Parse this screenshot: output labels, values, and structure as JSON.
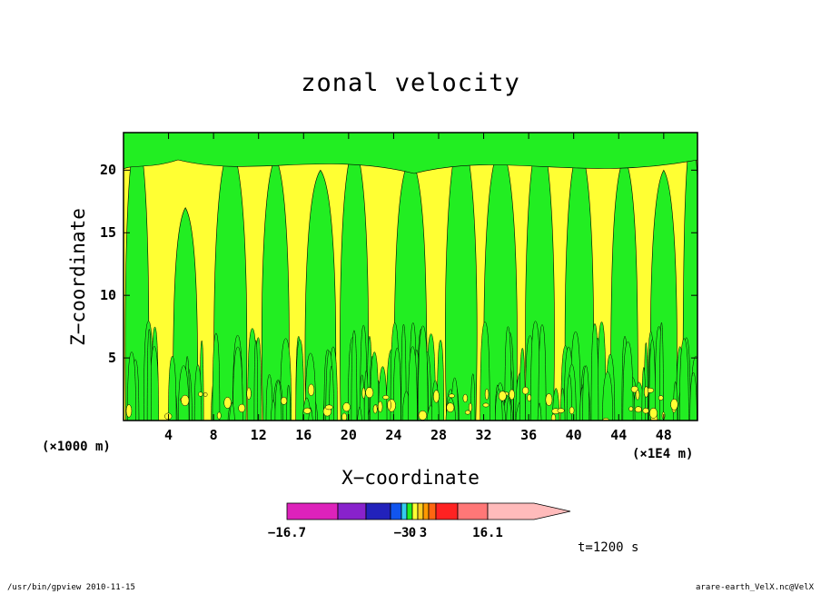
{
  "chart_data": {
    "type": "heatmap",
    "title": "zonal velocity",
    "xlabel": "X−coordinate",
    "ylabel": "Z−coordinate",
    "x_unit_left": "(×1000 m)",
    "x_unit_right": "(×1E4 m)",
    "xlim": [
      0,
      51
    ],
    "ylim": [
      0,
      23
    ],
    "x_ticks": [
      "4",
      "8",
      "12",
      "16",
      "20",
      "24",
      "28",
      "32",
      "36",
      "40",
      "44",
      "48"
    ],
    "y_ticks": [
      "5",
      "10",
      "15",
      "20"
    ],
    "colors_shown": {
      "positive": "#ffff33",
      "negative": "#22ee22"
    },
    "colorbar": {
      "min": -16.7,
      "max": 16.1,
      "labels": [
        "−16.7",
        "−3",
        "0",
        "3",
        "16.1"
      ],
      "colors": [
        "#dd22bb",
        "#8822cc",
        "#2222bb",
        "#1155ee",
        "#33ccee",
        "#22ee22",
        "#ffff33",
        "#ffcc22",
        "#ff9900",
        "#ff6611",
        "#ff2222",
        "#ff7777",
        "#ffbbbb"
      ]
    },
    "annotation": "t=1200 s"
  },
  "footer": {
    "left": "/usr/bin/gpview   2010-11-15",
    "right": "arare-earth_VelX.nc@VelX"
  }
}
